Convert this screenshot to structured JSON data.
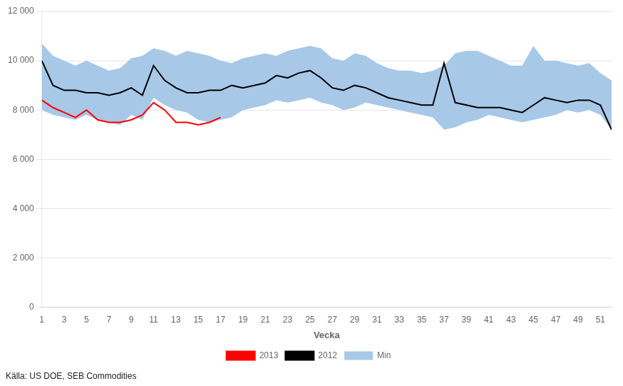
{
  "chart_data": {
    "type": "line",
    "xlabel": "Vecka",
    "source": "Källa: US DOE, SEB Commodities",
    "x": [
      1,
      2,
      3,
      4,
      5,
      6,
      7,
      8,
      9,
      10,
      11,
      12,
      13,
      14,
      15,
      16,
      17,
      18,
      19,
      20,
      21,
      22,
      23,
      24,
      25,
      26,
      27,
      28,
      29,
      30,
      31,
      32,
      33,
      34,
      35,
      36,
      37,
      38,
      39,
      40,
      41,
      42,
      43,
      44,
      45,
      46,
      47,
      48,
      49,
      50,
      51,
      52
    ],
    "series": [
      {
        "name": "Min",
        "type": "band",
        "color": "#a8c8e8",
        "low": [
          8000,
          7800,
          7700,
          7600,
          7800,
          7600,
          7500,
          7400,
          7800,
          7600,
          8500,
          8200,
          8000,
          7900,
          7600,
          7500,
          7600,
          7700,
          8000,
          8100,
          8200,
          8400,
          8300,
          8400,
          8500,
          8300,
          8200,
          8000,
          8100,
          8300,
          8200,
          8100,
          8000,
          7900,
          7800,
          7700,
          7200,
          7300,
          7500,
          7600,
          7800,
          7700,
          7600,
          7500,
          7600,
          7700,
          7800,
          8000,
          7900,
          8000,
          7800,
          7200
        ],
        "high": [
          10700,
          10200,
          10000,
          9800,
          10000,
          9800,
          9600,
          9700,
          10100,
          10200,
          10500,
          10400,
          10200,
          10400,
          10300,
          10200,
          10000,
          9900,
          10100,
          10200,
          10300,
          10200,
          10400,
          10500,
          10600,
          10500,
          10100,
          10000,
          10300,
          10200,
          9900,
          9700,
          9600,
          9600,
          9500,
          9600,
          9800,
          10300,
          10400,
          10400,
          10200,
          10000,
          9800,
          9800,
          10600,
          10000,
          10000,
          9900,
          9800,
          9900,
          9500,
          9200
        ]
      },
      {
        "name": "2012",
        "type": "line",
        "color": "#000000",
        "values": [
          10000,
          9000,
          8800,
          8800,
          8700,
          8700,
          8600,
          8700,
          8900,
          8600,
          9800,
          9200,
          8900,
          8700,
          8700,
          8800,
          8800,
          9000,
          8900,
          9000,
          9100,
          9400,
          9300,
          9500,
          9600,
          9300,
          8900,
          8800,
          9000,
          8900,
          8700,
          8500,
          8400,
          8300,
          8200,
          8200,
          9900,
          8300,
          8200,
          8100,
          8100,
          8100,
          8000,
          7900,
          8200,
          8500,
          8400,
          8300,
          8400,
          8400,
          8200,
          7200
        ]
      },
      {
        "name": "2013",
        "type": "line",
        "color": "#ff0000",
        "values": [
          8400,
          8100,
          7900,
          7700,
          8000,
          7600,
          7500,
          7500,
          7600,
          7800,
          8300,
          8000,
          7500,
          7500,
          7400,
          7500,
          7700,
          null,
          null,
          null,
          null,
          null,
          null,
          null,
          null,
          null,
          null,
          null,
          null,
          null,
          null,
          null,
          null,
          null,
          null,
          null,
          null,
          null,
          null,
          null,
          null,
          null,
          null,
          null,
          null,
          null,
          null,
          null,
          null,
          null,
          null,
          null
        ]
      }
    ],
    "xlim": [
      1,
      52
    ],
    "xticks": [
      1,
      3,
      5,
      7,
      9,
      11,
      13,
      15,
      17,
      19,
      21,
      23,
      25,
      27,
      29,
      31,
      33,
      35,
      37,
      39,
      41,
      43,
      45,
      47,
      49,
      51
    ],
    "ylim": [
      0,
      12000
    ],
    "yticks": [
      0,
      {
        "value": 2000,
        "label": "2 000"
      },
      {
        "value": 4000,
        "label": "4 000"
      },
      {
        "value": 6000,
        "label": "6 000"
      },
      {
        "value": 8000,
        "label": "8 000"
      },
      {
        "value": 10000,
        "label": "10 000"
      },
      {
        "value": 12000,
        "label": "12 000"
      }
    ],
    "grid": "y",
    "legend": "bottom"
  }
}
